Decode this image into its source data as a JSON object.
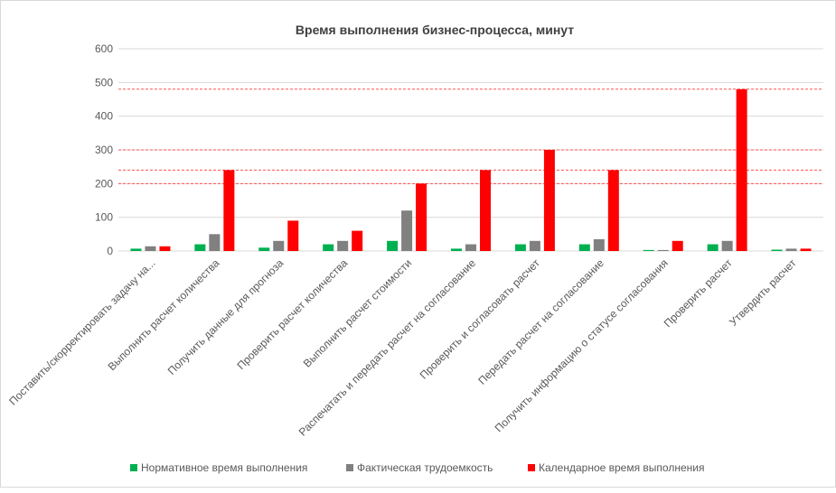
{
  "chart_data": {
    "type": "bar",
    "title": "Время выполнения бизнес-процесса, минут",
    "categories": [
      "Поставить/скорректировать задачу на...",
      "Выполнить расчет количества",
      "Получить данные для прогноза",
      "Проверить расчет количества",
      "Выполнить расчет стоимости",
      "Распечатать и передать расчет на согласование",
      "Проверить и согласовать расчет",
      "Передать расчет на согласование",
      "Получить информацию о статусе согласования",
      "Проверить расчет",
      "Утвердить расчет"
    ],
    "series": [
      {
        "name": "Нормативное время выполнения",
        "color": "#00b050",
        "values": [
          7,
          20,
          10,
          20,
          30,
          7,
          20,
          20,
          3,
          20,
          4
        ]
      },
      {
        "name": "Фактическая трудоемкость",
        "color": "#808080",
        "values": [
          14,
          50,
          30,
          30,
          120,
          20,
          30,
          35,
          3,
          30,
          7
        ]
      },
      {
        "name": "Календарное время выполнения",
        "color": "#ff0000",
        "values": [
          14,
          240,
          90,
          60,
          200,
          240,
          300,
          240,
          30,
          480,
          7
        ]
      }
    ],
    "ylim": [
      0,
      600
    ],
    "yticks": [
      0,
      100,
      200,
      300,
      400,
      500,
      600
    ],
    "reference_lines": [
      480,
      300,
      240,
      200
    ],
    "grid": true,
    "legend": "bottom"
  }
}
